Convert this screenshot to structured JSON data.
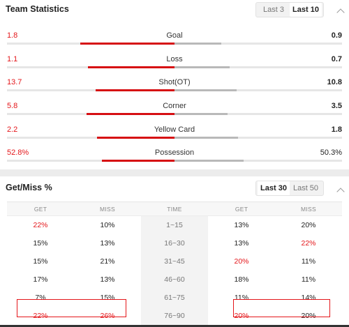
{
  "team_stats": {
    "title": "Team Statistics",
    "tabs": [
      {
        "label": "Last 3",
        "active": false
      },
      {
        "label": "Last 10",
        "active": true
      }
    ],
    "rows": [
      {
        "name": "Goal",
        "home": "1.8",
        "away": "0.9",
        "home_share": 0.667,
        "away_share": 0.333
      },
      {
        "name": "Loss",
        "home": "1.1",
        "away": "0.7",
        "home_share": 0.611,
        "away_share": 0.389
      },
      {
        "name": "Shot(OT)",
        "home": "13.7",
        "away": "10.8",
        "home_share": 0.559,
        "away_share": 0.441
      },
      {
        "name": "Corner",
        "home": "5.8",
        "away": "3.5",
        "home_share": 0.624,
        "away_share": 0.376
      },
      {
        "name": "Yellow Card",
        "home": "2.2",
        "away": "1.8",
        "home_share": 0.55,
        "away_share": 0.45
      },
      {
        "name": "Possession",
        "home": "52.8%",
        "away": "50.3%",
        "home_share": 0.512,
        "away_share": 0.488
      }
    ]
  },
  "get_miss": {
    "title": "Get/Miss %",
    "tabs": [
      {
        "label": "Last 30",
        "active": true
      },
      {
        "label": "Last 50",
        "active": false
      }
    ],
    "headers": [
      "GET",
      "MISS",
      "TIME",
      "GET",
      "MISS"
    ],
    "rows": [
      {
        "home_get": "22%",
        "home_miss": "10%",
        "time": "1~15",
        "away_get": "13%",
        "away_miss": "20%",
        "red": [
          true,
          false,
          false,
          false
        ]
      },
      {
        "home_get": "15%",
        "home_miss": "13%",
        "time": "16~30",
        "away_get": "13%",
        "away_miss": "22%",
        "red": [
          false,
          false,
          false,
          true
        ]
      },
      {
        "home_get": "15%",
        "home_miss": "21%",
        "time": "31~45",
        "away_get": "20%",
        "away_miss": "11%",
        "red": [
          false,
          false,
          true,
          false
        ]
      },
      {
        "home_get": "17%",
        "home_miss": "13%",
        "time": "46~60",
        "away_get": "18%",
        "away_miss": "11%",
        "red": [
          false,
          false,
          false,
          false
        ]
      },
      {
        "home_get": "7%",
        "home_miss": "15%",
        "time": "61~75",
        "away_get": "11%",
        "away_miss": "14%",
        "red": [
          false,
          false,
          false,
          false
        ]
      },
      {
        "home_get": "22%",
        "home_miss": "26%",
        "time": "76~90",
        "away_get": "20%",
        "away_miss": "20%",
        "red": [
          true,
          true,
          true,
          false
        ]
      }
    ]
  },
  "colors": {
    "accent_red": "#e4161a",
    "bar_home": "#d60e12",
    "bar_away": "#b9b9b9"
  }
}
